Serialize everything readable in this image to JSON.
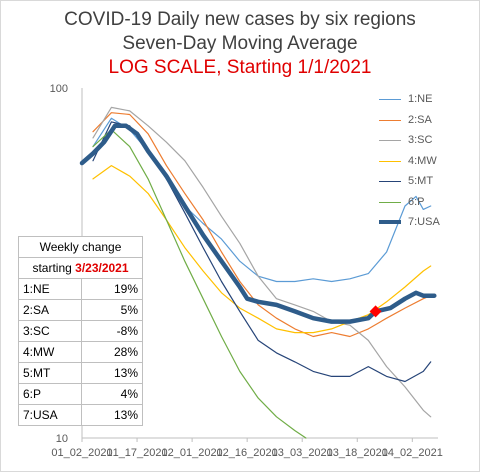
{
  "title": {
    "line1": "COVID-19 Daily new cases by six regions",
    "line2": "Seven-Day Moving Average",
    "line3": "LOG SCALE, Starting 1/1/2021"
  },
  "chart_data": {
    "type": "line",
    "y_scale": "log",
    "ylim": [
      10,
      100
    ],
    "y_tick_labels": [
      "100",
      "10"
    ],
    "x_tick_labels": [
      "01_02_2021",
      "01_17_2021",
      "02_01_2021",
      "02_16_2021",
      "03_03_2021",
      "03_18_2021",
      "04_02_2021"
    ],
    "x_tick_dates": [
      "2021-01-02",
      "2021-01-17",
      "2021-02-01",
      "2021-02-16",
      "2021-03-03",
      "2021-03-18",
      "2021-04-02"
    ],
    "xlim": [
      "2021-01-02",
      "2021-04-09"
    ],
    "grid": false,
    "legend_position": "right",
    "marker": {
      "date": "2021-03-23",
      "value": 23,
      "color": "#ff0000"
    },
    "series": [
      {
        "name": "1:NE",
        "color": "#5b9bd5",
        "dates": [
          "2021-01-05",
          "2021-01-10",
          "2021-01-15",
          "2021-01-20",
          "2021-01-25",
          "2021-01-30",
          "2021-02-04",
          "2021-02-09",
          "2021-02-14",
          "2021-02-19",
          "2021-02-24",
          "2021-03-01",
          "2021-03-06",
          "2021-03-11",
          "2021-03-16",
          "2021-03-21",
          "2021-03-26",
          "2021-03-31",
          "2021-04-03",
          "2021-04-05",
          "2021-04-07"
        ],
        "values": [
          68,
          82,
          76,
          66,
          55,
          46,
          41,
          37,
          32,
          29,
          28,
          28,
          28.5,
          28,
          28.5,
          29.5,
          34,
          46,
          49,
          45,
          46
        ]
      },
      {
        "name": "2:SA",
        "color": "#ed7d31",
        "dates": [
          "2021-01-05",
          "2021-01-10",
          "2021-01-15",
          "2021-01-20",
          "2021-01-25",
          "2021-01-30",
          "2021-02-04",
          "2021-02-09",
          "2021-02-14",
          "2021-02-19",
          "2021-02-24",
          "2021-03-01",
          "2021-03-06",
          "2021-03-11",
          "2021-03-16",
          "2021-03-21",
          "2021-03-26",
          "2021-03-31",
          "2021-04-05",
          "2021-04-07"
        ],
        "values": [
          75,
          85,
          84,
          74,
          60,
          50,
          42,
          34,
          28,
          24,
          22,
          20.5,
          19.5,
          20,
          19.5,
          20.5,
          22,
          23.5,
          25,
          25.5
        ]
      },
      {
        "name": "3:SC",
        "color": "#a5a5a5",
        "dates": [
          "2021-01-05",
          "2021-01-10",
          "2021-01-15",
          "2021-01-20",
          "2021-01-25",
          "2021-01-30",
          "2021-02-04",
          "2021-02-09",
          "2021-02-14",
          "2021-02-19",
          "2021-02-24",
          "2021-03-01",
          "2021-03-06",
          "2021-03-11",
          "2021-03-16",
          "2021-03-21",
          "2021-03-26",
          "2021-03-31",
          "2021-04-05",
          "2021-04-07"
        ],
        "values": [
          72,
          88,
          86,
          78,
          70,
          62,
          52,
          43,
          36,
          29,
          25,
          24,
          23,
          21.5,
          21,
          19,
          16,
          14,
          12,
          11.5
        ]
      },
      {
        "name": "4:MW",
        "color": "#ffc000",
        "dates": [
          "2021-01-05",
          "2021-01-10",
          "2021-01-15",
          "2021-01-20",
          "2021-01-25",
          "2021-01-30",
          "2021-02-04",
          "2021-02-09",
          "2021-02-14",
          "2021-02-19",
          "2021-02-24",
          "2021-03-01",
          "2021-03-06",
          "2021-03-11",
          "2021-03-16",
          "2021-03-21",
          "2021-03-26",
          "2021-03-31",
          "2021-04-05",
          "2021-04-07"
        ],
        "values": [
          55,
          60,
          56,
          50,
          42,
          35,
          30,
          26,
          23.5,
          22,
          20.5,
          20,
          20,
          20.5,
          21.5,
          22.5,
          24.5,
          27,
          30,
          31
        ]
      },
      {
        "name": "5:MT",
        "color": "#264478",
        "dates": [
          "2021-01-05",
          "2021-01-10",
          "2021-01-15",
          "2021-01-20",
          "2021-01-25",
          "2021-01-30",
          "2021-02-04",
          "2021-02-09",
          "2021-02-14",
          "2021-02-19",
          "2021-02-24",
          "2021-03-01",
          "2021-03-06",
          "2021-03-11",
          "2021-03-16",
          "2021-03-21",
          "2021-03-26",
          "2021-03-31",
          "2021-04-05",
          "2021-04-07"
        ],
        "values": [
          62,
          80,
          78,
          66,
          55,
          44,
          35,
          28,
          23,
          19,
          17.5,
          16.5,
          15.5,
          15,
          15,
          16,
          15,
          14.5,
          15.5,
          16.5
        ]
      },
      {
        "name": "6:P",
        "color": "#70ad47",
        "dates": [
          "2021-01-05",
          "2021-01-10",
          "2021-01-15",
          "2021-01-20",
          "2021-01-25",
          "2021-01-30",
          "2021-02-04",
          "2021-02-09",
          "2021-02-14",
          "2021-02-19",
          "2021-02-24",
          "2021-03-01",
          "2021-03-04"
        ],
        "values": [
          68,
          76,
          68,
          55,
          42,
          32,
          25,
          19.5,
          15.5,
          13,
          11.5,
          10.5,
          10
        ]
      },
      {
        "name": "7:USA",
        "color": "#2e5c8a",
        "dates": [
          "2021-01-02",
          "2021-01-05",
          "2021-01-08",
          "2021-01-11",
          "2021-01-14",
          "2021-01-17",
          "2021-01-20",
          "2021-01-25",
          "2021-01-30",
          "2021-02-04",
          "2021-02-09",
          "2021-02-14",
          "2021-02-16",
          "2021-02-19",
          "2021-02-24",
          "2021-03-01",
          "2021-03-06",
          "2021-03-11",
          "2021-03-16",
          "2021-03-21",
          "2021-03-23",
          "2021-03-27",
          "2021-03-31",
          "2021-04-03",
          "2021-04-05",
          "2021-04-08"
        ],
        "values": [
          61,
          65,
          70,
          78,
          78,
          74,
          66,
          56,
          46,
          38,
          32,
          27,
          25,
          24.5,
          24,
          23,
          22,
          21.5,
          21.5,
          22,
          23,
          23.5,
          25,
          26,
          25.5,
          25.5
        ]
      }
    ]
  },
  "legend": [
    "1:NE",
    "2:SA",
    "3:SC",
    "4:MW",
    "5:MT",
    "6:P",
    "7:USA"
  ],
  "table": {
    "header_line1": "Weekly change",
    "header_prefix": "starting ",
    "header_date": "3/23/2021",
    "rows": [
      {
        "region": "1:NE",
        "change": "19%"
      },
      {
        "region": "2:SA",
        "change": "5%"
      },
      {
        "region": "3:SC",
        "change": "-8%"
      },
      {
        "region": "4:MW",
        "change": "28%"
      },
      {
        "region": "5:MT",
        "change": "13%"
      },
      {
        "region": "6:P",
        "change": "4%"
      },
      {
        "region": "7:USA",
        "change": "13%"
      }
    ]
  }
}
